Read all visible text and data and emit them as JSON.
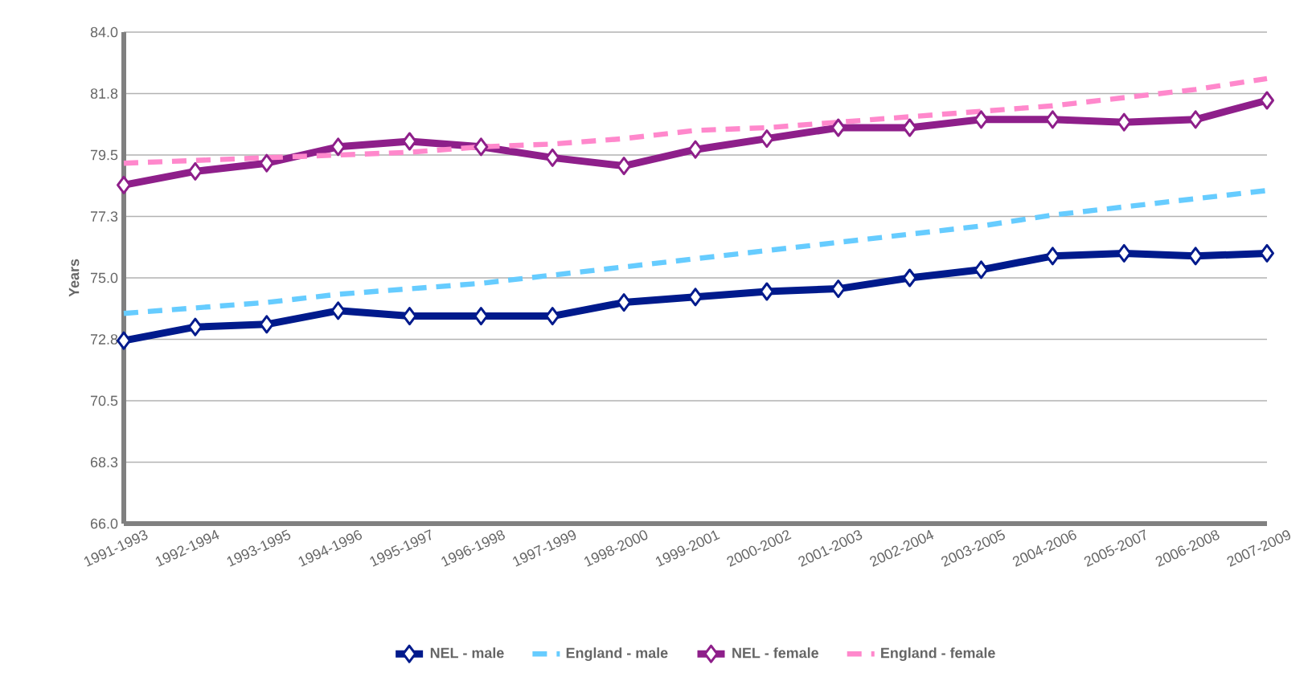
{
  "chart_data": {
    "type": "line",
    "ylabel": "Years",
    "categories": [
      "1991-1993",
      "1992-1994",
      "1993-1995",
      "1994-1996",
      "1995-1997",
      "1996-1998",
      "1997-1999",
      "1998-2000",
      "1999-2001",
      "2000-2002",
      "2001-2003",
      "2002-2004",
      "2003-2005",
      "2004-2006",
      "2005-2007",
      "2006-2008",
      "2007-2009"
    ],
    "series": [
      {
        "name": "NEL - male",
        "color": "#001a8c",
        "marker": "diamond",
        "line_style": "solid",
        "values": [
          72.7,
          73.2,
          73.3,
          73.8,
          73.6,
          73.6,
          73.6,
          74.1,
          74.3,
          74.5,
          74.6,
          75.0,
          75.3,
          75.8,
          75.9,
          75.8,
          75.9
        ]
      },
      {
        "name": "England - male",
        "color": "#66ccff",
        "marker": "none",
        "line_style": "dashed",
        "values": [
          73.7,
          73.9,
          74.1,
          74.4,
          74.6,
          74.8,
          75.1,
          75.4,
          75.7,
          76.0,
          76.3,
          76.6,
          76.9,
          77.3,
          77.6,
          77.9,
          78.2
        ]
      },
      {
        "name": "NEL - female",
        "color": "#8e1f8a",
        "marker": "diamond",
        "line_style": "solid",
        "values": [
          78.4,
          78.9,
          79.2,
          79.8,
          80.0,
          79.8,
          79.4,
          79.1,
          79.7,
          80.1,
          80.5,
          80.5,
          80.8,
          80.8,
          80.7,
          80.8,
          81.5
        ]
      },
      {
        "name": "England - female",
        "color": "#ff88cc",
        "marker": "none",
        "line_style": "dashed",
        "values": [
          79.2,
          79.3,
          79.4,
          79.5,
          79.6,
          79.8,
          79.9,
          80.1,
          80.4,
          80.5,
          80.7,
          80.9,
          81.1,
          81.3,
          81.6,
          81.9,
          82.3
        ]
      }
    ],
    "ylim": [
      66,
      84
    ],
    "yticks": [
      {
        "value": 66,
        "label": "66.0"
      },
      {
        "value": 68.25,
        "label": "68.3"
      },
      {
        "value": 70.5,
        "label": "70.5"
      },
      {
        "value": 72.75,
        "label": "72.8"
      },
      {
        "value": 75,
        "label": "75.0"
      },
      {
        "value": 77.25,
        "label": "77.3"
      },
      {
        "value": 79.5,
        "label": "79.5"
      },
      {
        "value": 81.75,
        "label": "81.8"
      },
      {
        "value": 84,
        "label": "84.0"
      }
    ],
    "grid": "y",
    "legend": "bottom"
  }
}
